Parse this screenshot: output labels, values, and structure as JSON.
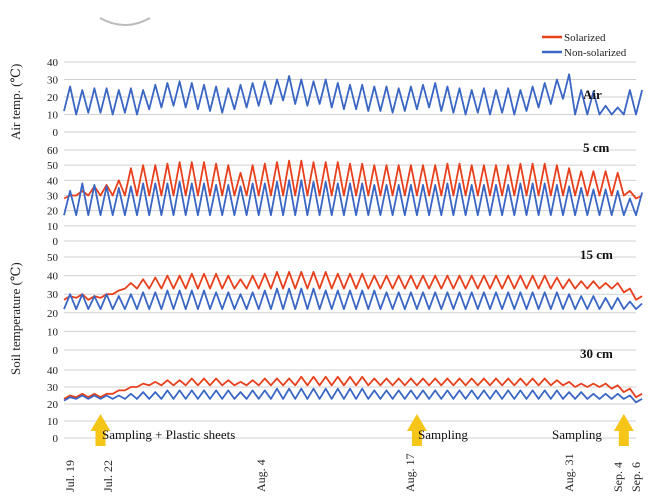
{
  "legend": {
    "series": [
      {
        "name": "Solarized",
        "color": "#e8401c"
      },
      {
        "name": "Non-solarized",
        "color": "#3a66c4"
      }
    ]
  },
  "axes": {
    "air_ylabel": "Air temp. (℃)",
    "soil_ylabel": "Soil temperature (℃)"
  },
  "dates": [
    "Jul. 19",
    "Jul. 22",
    "Aug. 4",
    "Aug. 17",
    "Aug. 31",
    "Sep. 4",
    "Sep. 6"
  ],
  "annotations": [
    {
      "label": "Sampling + Plastic sheets",
      "day": 3
    },
    {
      "label": "Sampling",
      "day": 29
    },
    {
      "label": "Sampling",
      "day": 46
    }
  ],
  "colors": {
    "arrow": "#f5c518",
    "grid": "#d0d0d0"
  },
  "chart_data": [
    {
      "type": "line",
      "panel": "Air",
      "x_unit": "days since Jul. 19",
      "ylim": [
        0,
        40
      ],
      "yticks": [
        0,
        10,
        20,
        30,
        40
      ],
      "series": [
        {
          "name": "Non-solarized",
          "daily_min": 12,
          "daily_max": [
            26,
            24,
            25,
            25,
            24,
            25,
            24,
            27,
            28,
            29,
            28,
            27,
            26,
            25,
            27,
            28,
            29,
            30,
            32,
            30,
            29,
            30,
            28,
            27,
            27,
            26,
            26,
            25,
            26,
            27,
            28,
            26,
            25,
            24,
            25,
            24,
            25,
            24,
            26,
            28,
            30,
            33,
            24,
            23,
            15,
            14,
            24,
            24
          ]
        }
      ]
    },
    {
      "type": "line",
      "panel": "5 cm",
      "ylim": [
        0,
        60
      ],
      "yticks": [
        0,
        10,
        20,
        30,
        40,
        50,
        60
      ],
      "series": [
        {
          "name": "Solarized",
          "daily_min": 30,
          "daily_max": [
            30,
            33,
            36,
            37,
            40,
            48,
            50,
            50,
            51,
            52,
            52,
            52,
            51,
            50,
            45,
            50,
            51,
            52,
            53,
            53,
            52,
            52,
            52,
            51,
            51,
            50,
            50,
            50,
            50,
            50,
            50,
            51,
            51,
            50,
            50,
            50,
            50,
            51,
            51,
            51,
            50,
            48,
            46,
            46,
            46,
            45,
            33,
            30
          ]
        },
        {
          "name": "Non-solarized",
          "daily_min": 17,
          "daily_max": [
            33,
            38,
            37,
            36,
            35,
            36,
            38,
            38,
            38,
            39,
            38,
            38,
            37,
            37,
            36,
            38,
            38,
            39,
            40,
            40,
            39,
            39,
            38,
            38,
            38,
            37,
            37,
            37,
            37,
            37,
            37,
            38,
            38,
            37,
            37,
            37,
            37,
            38,
            38,
            38,
            37,
            36,
            35,
            34,
            34,
            33,
            28,
            32
          ]
        }
      ]
    },
    {
      "type": "line",
      "panel": "15 cm",
      "ylim": [
        0,
        50
      ],
      "yticks": [
        0,
        10,
        20,
        30,
        40,
        50
      ],
      "series": [
        {
          "name": "Solarized",
          "daily_min": 33,
          "daily_max": [
            29,
            30,
            29,
            30,
            32,
            36,
            38,
            39,
            40,
            40,
            41,
            41,
            41,
            40,
            38,
            40,
            41,
            42,
            42,
            42,
            42,
            42,
            41,
            41,
            41,
            40,
            40,
            40,
            40,
            40,
            40,
            40,
            40,
            40,
            40,
            40,
            40,
            40,
            40,
            40,
            39,
            38,
            37,
            37,
            36,
            36,
            33,
            29
          ]
        },
        {
          "name": "Non-solarized",
          "daily_min": 22,
          "daily_max": [
            30,
            30,
            29,
            30,
            29,
            30,
            31,
            31,
            32,
            32,
            32,
            32,
            31,
            31,
            30,
            31,
            32,
            33,
            33,
            33,
            33,
            32,
            32,
            32,
            32,
            32,
            31,
            31,
            31,
            31,
            31,
            31,
            31,
            31,
            31,
            31,
            31,
            31,
            31,
            31,
            31,
            30,
            29,
            29,
            28,
            28,
            26,
            25
          ]
        }
      ]
    },
    {
      "type": "line",
      "panel": "30 cm",
      "ylim": [
        0,
        40
      ],
      "yticks": [
        0,
        10,
        20,
        30,
        40
      ],
      "series": [
        {
          "name": "Solarized",
          "daily_min": 31,
          "daily_max": [
            25,
            26,
            26,
            26,
            28,
            30,
            32,
            33,
            34,
            34,
            35,
            35,
            35,
            34,
            33,
            34,
            35,
            35,
            35,
            36,
            36,
            36,
            36,
            36,
            36,
            35,
            35,
            35,
            35,
            35,
            35,
            35,
            35,
            35,
            35,
            35,
            35,
            35,
            35,
            35,
            34,
            33,
            32,
            32,
            32,
            31,
            29,
            26
          ]
        },
        {
          "name": "Non-solarized",
          "daily_min": 23,
          "daily_max": [
            24,
            25,
            25,
            25,
            25,
            26,
            27,
            27,
            28,
            28,
            28,
            28,
            28,
            28,
            27,
            28,
            28,
            29,
            29,
            29,
            29,
            29,
            29,
            29,
            29,
            28,
            28,
            28,
            28,
            28,
            28,
            28,
            28,
            28,
            28,
            28,
            28,
            28,
            28,
            28,
            28,
            27,
            27,
            26,
            26,
            26,
            25,
            23
          ]
        }
      ]
    }
  ]
}
